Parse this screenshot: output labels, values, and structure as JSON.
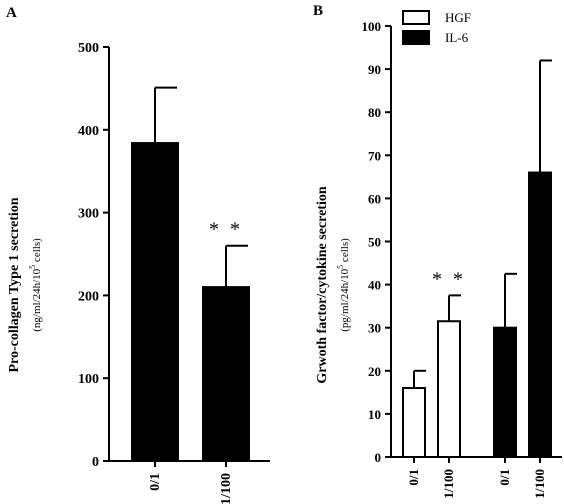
{
  "chart_data": [
    {
      "panel_label": "A",
      "type": "bar",
      "categories": [
        "0/1",
        "1/100"
      ],
      "series": [
        {
          "values": [
            384,
            210
          ],
          "errors": [
            67,
            50
          ],
          "color": "#000000"
        }
      ],
      "annotations": [
        {
          "category": "1/100",
          "text": "**"
        }
      ],
      "ylabel": "Pro-collagen Type 1 secretion",
      "ylabel_unit_prefix": "(ng/ml/24h/10",
      "ylabel_unit_sup": "5",
      "ylabel_unit_suffix": " cells)",
      "ylim": [
        0,
        500
      ],
      "yticks": [
        "0",
        "100",
        "200",
        "300",
        "400",
        "500"
      ],
      "grid": false
    },
    {
      "panel_label": "B",
      "type": "bar",
      "categories": [
        "0/1",
        "1/100",
        "0/1",
        "1/100"
      ],
      "series": [
        {
          "name": "HGF",
          "values": [
            16,
            31.5,
            null,
            null
          ],
          "errors": [
            4,
            6,
            null,
            null
          ],
          "fill": "#ffffff",
          "stroke": "#000000"
        },
        {
          "name": "IL-6",
          "values": [
            null,
            null,
            30,
            66
          ],
          "errors": [
            null,
            null,
            12.5,
            26
          ],
          "fill": "#000000",
          "stroke": "#000000"
        }
      ],
      "annotations": [
        {
          "category_index": 1,
          "text": "**"
        }
      ],
      "ylabel": "Grwoth factor/cytokine secretion",
      "ylabel_unit_prefix": "(pg/ml/24h/10",
      "ylabel_unit_sup": "5",
      "ylabel_unit_suffix": " cells)",
      "ylim": [
        0,
        100
      ],
      "yticks": [
        "0",
        "10",
        "20",
        "30",
        "40",
        "50",
        "60",
        "70",
        "80",
        "90",
        "100"
      ],
      "legend": {
        "placement": "top-left",
        "entries": [
          "HGF",
          "IL-6"
        ]
      },
      "grid": false
    }
  ]
}
